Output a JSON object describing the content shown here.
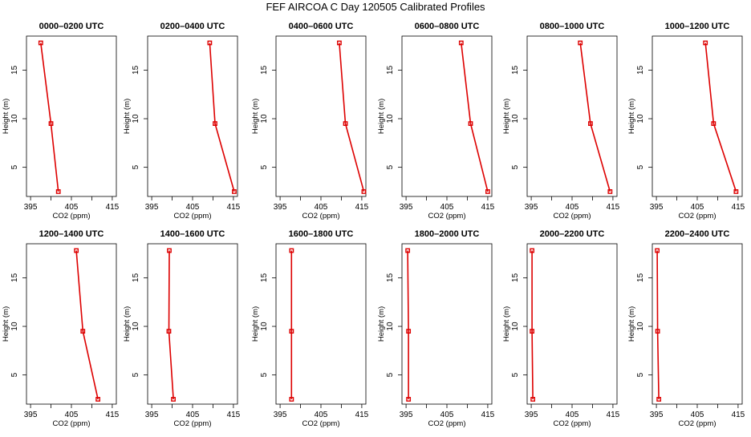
{
  "figure": {
    "title": "FEF AIRCOA C  Day 120505  Calibrated Profiles",
    "series_color": "#dd0000"
  },
  "chart_data": [
    {
      "type": "line",
      "title": "0000–0200 UTC",
      "xlabel": "CO2 (ppm)",
      "ylabel": "Height (m)",
      "xlim": [
        394,
        416
      ],
      "ylim": [
        2,
        18.5
      ],
      "xticks": [
        395,
        400,
        405,
        410,
        415
      ],
      "xtick_labels": [
        "395",
        "",
        "405",
        "",
        "415"
      ],
      "yticks": [
        5,
        10,
        15
      ],
      "ytick_labels": [
        "5",
        "10",
        "15"
      ],
      "x": [
        397.5,
        400.0,
        401.8
      ],
      "y": [
        17.8,
        9.5,
        2.5
      ]
    },
    {
      "type": "line",
      "title": "0200–0400 UTC",
      "xlabel": "CO2 (ppm)",
      "ylabel": "Height (m)",
      "xlim": [
        394,
        416
      ],
      "ylim": [
        2,
        18.5
      ],
      "xticks": [
        395,
        400,
        405,
        410,
        415
      ],
      "xtick_labels": [
        "395",
        "",
        "405",
        "",
        "415"
      ],
      "yticks": [
        5,
        10,
        15
      ],
      "ytick_labels": [
        "5",
        "10",
        "15"
      ],
      "x": [
        409.2,
        410.5,
        415.2
      ],
      "y": [
        17.8,
        9.5,
        2.5
      ]
    },
    {
      "type": "line",
      "title": "0400–0600 UTC",
      "xlabel": "CO2 (ppm)",
      "ylabel": "Height (m)",
      "xlim": [
        394,
        416
      ],
      "ylim": [
        2,
        18.5
      ],
      "xticks": [
        395,
        400,
        405,
        410,
        415
      ],
      "xtick_labels": [
        "395",
        "",
        "405",
        "",
        "415"
      ],
      "yticks": [
        5,
        10,
        15
      ],
      "ytick_labels": [
        "5",
        "10",
        "15"
      ],
      "x": [
        409.5,
        411.0,
        415.5
      ],
      "y": [
        17.8,
        9.5,
        2.5
      ]
    },
    {
      "type": "line",
      "title": "0600–0800 UTC",
      "xlabel": "CO2 (ppm)",
      "ylabel": "Height (m)",
      "xlim": [
        394,
        416
      ],
      "ylim": [
        2,
        18.5
      ],
      "xticks": [
        395,
        400,
        405,
        410,
        415
      ],
      "xtick_labels": [
        "395",
        "",
        "405",
        "",
        "415"
      ],
      "yticks": [
        5,
        10,
        15
      ],
      "ytick_labels": [
        "5",
        "10",
        "15"
      ],
      "x": [
        408.5,
        410.8,
        415.0
      ],
      "y": [
        17.8,
        9.5,
        2.5
      ]
    },
    {
      "type": "line",
      "title": "0800–1000 UTC",
      "xlabel": "CO2 (ppm)",
      "ylabel": "Height (m)",
      "xlim": [
        394,
        416
      ],
      "ylim": [
        2,
        18.5
      ],
      "xticks": [
        395,
        400,
        405,
        410,
        415
      ],
      "xtick_labels": [
        "395",
        "",
        "405",
        "",
        "415"
      ],
      "yticks": [
        5,
        10,
        15
      ],
      "ytick_labels": [
        "5",
        "10",
        "15"
      ],
      "x": [
        407.0,
        409.5,
        414.3
      ],
      "y": [
        17.8,
        9.5,
        2.5
      ]
    },
    {
      "type": "line",
      "title": "1000–1200 UTC",
      "xlabel": "CO2 (ppm)",
      "ylabel": "Height (m)",
      "xlim": [
        394,
        416
      ],
      "ylim": [
        2,
        18.5
      ],
      "xticks": [
        395,
        400,
        405,
        410,
        415
      ],
      "xtick_labels": [
        "395",
        "",
        "405",
        "",
        "415"
      ],
      "yticks": [
        5,
        10,
        15
      ],
      "ytick_labels": [
        "5",
        "10",
        "15"
      ],
      "x": [
        407.0,
        409.0,
        414.5
      ],
      "y": [
        17.8,
        9.5,
        2.5
      ]
    },
    {
      "type": "line",
      "title": "1200–1400 UTC",
      "xlabel": "CO2 (ppm)",
      "ylabel": "Height (m)",
      "xlim": [
        394,
        416
      ],
      "ylim": [
        2,
        18.5
      ],
      "xticks": [
        395,
        400,
        405,
        410,
        415
      ],
      "xtick_labels": [
        "395",
        "",
        "405",
        "",
        "415"
      ],
      "yticks": [
        5,
        10,
        15
      ],
      "ytick_labels": [
        "5",
        "10",
        "15"
      ],
      "x": [
        406.2,
        407.8,
        411.5
      ],
      "y": [
        17.8,
        9.5,
        2.5
      ]
    },
    {
      "type": "line",
      "title": "1400–1600 UTC",
      "xlabel": "CO2 (ppm)",
      "ylabel": "Height (m)",
      "xlim": [
        394,
        416
      ],
      "ylim": [
        2,
        18.5
      ],
      "xticks": [
        395,
        400,
        405,
        410,
        415
      ],
      "xtick_labels": [
        "395",
        "",
        "405",
        "",
        "415"
      ],
      "yticks": [
        5,
        10,
        15
      ],
      "ytick_labels": [
        "5",
        "10",
        "15"
      ],
      "x": [
        399.3,
        399.2,
        400.3
      ],
      "y": [
        17.8,
        9.5,
        2.5
      ]
    },
    {
      "type": "line",
      "title": "1600–1800 UTC",
      "xlabel": "CO2 (ppm)",
      "ylabel": "Height (m)",
      "xlim": [
        394,
        416
      ],
      "ylim": [
        2,
        18.5
      ],
      "xticks": [
        395,
        400,
        405,
        410,
        415
      ],
      "xtick_labels": [
        "395",
        "",
        "405",
        "",
        "415"
      ],
      "yticks": [
        5,
        10,
        15
      ],
      "ytick_labels": [
        "5",
        "10",
        "15"
      ],
      "x": [
        397.8,
        397.8,
        397.8
      ],
      "y": [
        17.8,
        9.5,
        2.5
      ]
    },
    {
      "type": "line",
      "title": "1800–2000 UTC",
      "xlabel": "CO2 (ppm)",
      "ylabel": "Height (m)",
      "xlim": [
        394,
        416
      ],
      "ylim": [
        2,
        18.5
      ],
      "xticks": [
        395,
        400,
        405,
        410,
        415
      ],
      "xtick_labels": [
        "395",
        "",
        "405",
        "",
        "415"
      ],
      "yticks": [
        5,
        10,
        15
      ],
      "ytick_labels": [
        "5",
        "10",
        "15"
      ],
      "x": [
        395.4,
        395.6,
        395.6
      ],
      "y": [
        17.8,
        9.5,
        2.5
      ]
    },
    {
      "type": "line",
      "title": "2000–2200 UTC",
      "xlabel": "CO2 (ppm)",
      "ylabel": "Height (m)",
      "xlim": [
        394,
        416
      ],
      "ylim": [
        2,
        18.5
      ],
      "xticks": [
        395,
        400,
        405,
        410,
        415
      ],
      "xtick_labels": [
        "395",
        "",
        "405",
        "",
        "415"
      ],
      "yticks": [
        5,
        10,
        15
      ],
      "ytick_labels": [
        "5",
        "10",
        "15"
      ],
      "x": [
        395.2,
        395.2,
        395.4
      ],
      "y": [
        17.8,
        9.5,
        2.5
      ]
    },
    {
      "type": "line",
      "title": "2200–2400 UTC",
      "xlabel": "CO2 (ppm)",
      "ylabel": "Height (m)",
      "xlim": [
        394,
        416
      ],
      "ylim": [
        2,
        18.5
      ],
      "xticks": [
        395,
        400,
        405,
        410,
        415
      ],
      "xtick_labels": [
        "395",
        "",
        "405",
        "",
        "415"
      ],
      "yticks": [
        5,
        10,
        15
      ],
      "ytick_labels": [
        "5",
        "10",
        "15"
      ],
      "x": [
        395.2,
        395.3,
        395.6
      ],
      "y": [
        17.8,
        9.5,
        2.5
      ]
    }
  ]
}
